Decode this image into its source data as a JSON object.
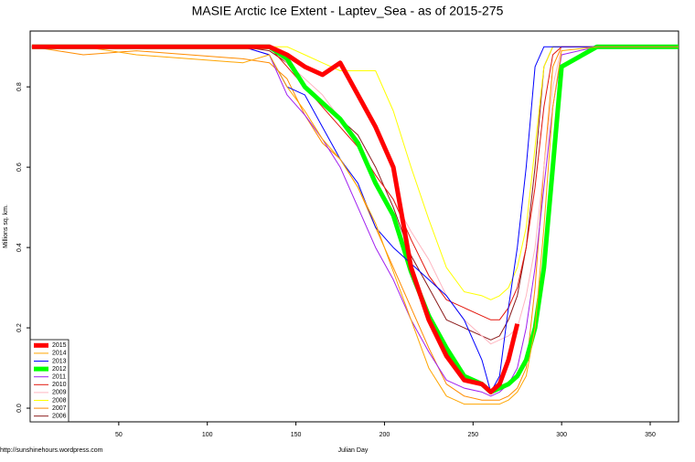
{
  "chart_data": {
    "type": "line",
    "title": "MASIE Arctic Ice Extent - Laptev_Sea - as of 2015-275",
    "x_label": "Julian Day",
    "y_label": "Millions sq. km.",
    "footer": "http://sunshinehours.wordpress.com",
    "x": [
      1,
      30,
      60,
      90,
      120,
      135,
      145,
      155,
      165,
      175,
      185,
      195,
      205,
      215,
      225,
      235,
      245,
      255,
      260,
      265,
      270,
      275,
      280,
      285,
      290,
      295,
      300,
      320,
      366
    ],
    "xlim": [
      0,
      366
    ],
    "xticks": [
      50,
      100,
      150,
      200,
      250,
      300,
      350
    ],
    "ylim": [
      -0.034,
      0.939
    ],
    "yticks": [
      {
        "value": 0,
        "label": "0.0"
      },
      0.2,
      0.4,
      0.6,
      0.8
    ],
    "legend": "bottom-left",
    "series": [
      {
        "name": "2015",
        "color": "#ff0000",
        "width": 5,
        "values": [
          0.9,
          0.9,
          0.9,
          0.9,
          0.9,
          0.9,
          0.88,
          0.85,
          0.83,
          0.86,
          0.78,
          0.7,
          0.6,
          0.35,
          0.22,
          0.13,
          0.07,
          0.06,
          0.04,
          0.06,
          0.12,
          0.21,
          null,
          null,
          null,
          null,
          null,
          null,
          null
        ]
      },
      {
        "name": "2014",
        "color": "#ffa500",
        "width": 1,
        "values": [
          0.9,
          0.9,
          0.88,
          0.87,
          0.86,
          0.88,
          0.8,
          0.74,
          0.67,
          0.62,
          0.55,
          0.46,
          0.34,
          0.22,
          0.1,
          0.03,
          0.01,
          0.01,
          0.01,
          0.01,
          0.02,
          0.04,
          0.08,
          0.2,
          0.45,
          0.75,
          0.89,
          0.9,
          0.9
        ]
      },
      {
        "name": "2013",
        "color": "#0000ff",
        "width": 1,
        "values": [
          0.9,
          0.9,
          0.9,
          0.9,
          0.9,
          0.88,
          0.8,
          0.78,
          0.7,
          0.62,
          0.56,
          0.45,
          0.4,
          0.36,
          0.32,
          0.28,
          0.22,
          0.12,
          0.04,
          0.08,
          0.25,
          0.4,
          0.6,
          0.85,
          0.9,
          0.9,
          0.9,
          0.9,
          0.9
        ]
      },
      {
        "name": "2012",
        "color": "#00ff00",
        "width": 5,
        "values": [
          0.9,
          0.9,
          0.9,
          0.9,
          0.9,
          0.9,
          0.87,
          0.8,
          0.76,
          0.72,
          0.66,
          0.56,
          0.48,
          0.34,
          0.23,
          0.15,
          0.08,
          0.06,
          0.04,
          0.05,
          0.06,
          0.08,
          0.12,
          0.2,
          0.35,
          0.6,
          0.85,
          0.9,
          0.9
        ]
      },
      {
        "name": "2011",
        "color": "#a020f0",
        "width": 1,
        "values": [
          0.9,
          0.9,
          0.9,
          0.9,
          0.9,
          0.88,
          0.78,
          0.73,
          0.67,
          0.6,
          0.5,
          0.4,
          0.32,
          0.22,
          0.14,
          0.07,
          0.05,
          0.04,
          0.03,
          0.04,
          0.06,
          0.1,
          0.2,
          0.35,
          0.55,
          0.75,
          0.88,
          0.9,
          0.9
        ]
      },
      {
        "name": "2010",
        "color": "#e3170d",
        "width": 1,
        "values": [
          0.9,
          0.9,
          0.9,
          0.9,
          0.9,
          0.9,
          0.85,
          0.8,
          0.75,
          0.7,
          0.65,
          0.58,
          0.52,
          0.42,
          0.33,
          0.27,
          0.25,
          0.23,
          0.22,
          0.22,
          0.25,
          0.3,
          0.4,
          0.55,
          0.75,
          0.88,
          0.9,
          0.9,
          0.9
        ]
      },
      {
        "name": "2009",
        "color": "#ffb6c1",
        "width": 1,
        "values": [
          0.9,
          0.9,
          0.9,
          0.9,
          0.9,
          0.9,
          0.86,
          0.82,
          0.78,
          0.72,
          0.65,
          0.58,
          0.52,
          0.44,
          0.37,
          0.28,
          0.22,
          0.18,
          0.16,
          0.17,
          0.18,
          0.2,
          0.28,
          0.4,
          0.6,
          0.8,
          0.9,
          0.9,
          0.9
        ]
      },
      {
        "name": "2008",
        "color": "#ffff00",
        "width": 1,
        "values": [
          0.9,
          0.9,
          0.9,
          0.9,
          0.9,
          0.9,
          0.9,
          0.88,
          0.86,
          0.84,
          0.84,
          0.84,
          0.74,
          0.6,
          0.47,
          0.35,
          0.29,
          0.28,
          0.27,
          0.28,
          0.3,
          0.35,
          0.45,
          0.65,
          0.85,
          0.9,
          0.9,
          0.9,
          0.9
        ]
      },
      {
        "name": "2007",
        "color": "#ff8c00",
        "width": 1,
        "values": [
          0.9,
          0.88,
          0.89,
          0.88,
          0.87,
          0.86,
          0.82,
          0.73,
          0.66,
          0.62,
          0.55,
          0.45,
          0.35,
          0.25,
          0.15,
          0.06,
          0.03,
          0.02,
          0.02,
          0.02,
          0.03,
          0.05,
          0.1,
          0.3,
          0.6,
          0.85,
          0.9,
          0.9,
          0.9
        ]
      },
      {
        "name": "2006",
        "color": "#8b1a1a",
        "width": 1,
        "values": [
          0.9,
          0.9,
          0.9,
          0.9,
          0.9,
          0.89,
          0.86,
          0.8,
          0.76,
          0.72,
          0.68,
          0.6,
          0.5,
          0.38,
          0.3,
          0.22,
          0.2,
          0.18,
          0.17,
          0.18,
          0.22,
          0.28,
          0.4,
          0.6,
          0.85,
          0.9,
          0.9,
          0.9,
          0.9
        ]
      }
    ]
  }
}
